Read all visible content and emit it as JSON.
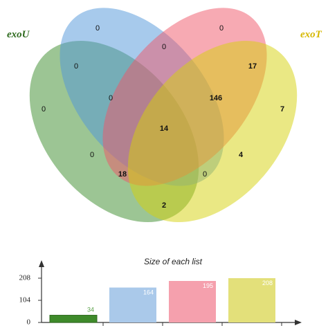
{
  "sets": [
    {
      "name": "exoU",
      "color": "#3a8c2a",
      "label_color": "#2f6b1f"
    },
    {
      "name": "",
      "color": "#4f95da"
    },
    {
      "name": "",
      "color": "#ef5568"
    },
    {
      "name": "exoT",
      "color": "#d6d20a",
      "label_color": "#d6b800"
    }
  ],
  "regions": [
    {
      "id": "green-only",
      "value": "0",
      "bold": false
    },
    {
      "id": "blue-only",
      "value": "0",
      "bold": false
    },
    {
      "id": "pink-only",
      "value": "0",
      "bold": false
    },
    {
      "id": "yellow-only",
      "value": "7",
      "bold": true
    },
    {
      "id": "green-blue",
      "value": "0",
      "bold": false
    },
    {
      "id": "blue-pink",
      "value": "0",
      "bold": false
    },
    {
      "id": "pink-yellow",
      "value": "17",
      "bold": true
    },
    {
      "id": "green-blue-pink",
      "value": "0",
      "bold": false
    },
    {
      "id": "blue-pink-yellow",
      "value": "146",
      "bold": true
    },
    {
      "id": "all-four",
      "value": "14",
      "bold": true
    },
    {
      "id": "green-pink",
      "value": "0",
      "bold": false
    },
    {
      "id": "blue-yellow",
      "value": "4",
      "bold": true
    },
    {
      "id": "green-pink-yellow",
      "value": "18",
      "bold": true
    },
    {
      "id": "green-blue-yellow",
      "value": "0",
      "bold": false
    },
    {
      "id": "green-yellow",
      "value": "2",
      "bold": true
    }
  ],
  "chart_data": {
    "type": "bar",
    "title": "Size of each list",
    "categories": [
      "",
      "",
      "",
      ""
    ],
    "values": [
      34,
      164,
      195,
      208
    ],
    "yticks": [
      "0",
      "104",
      "208"
    ],
    "ylim": [
      0,
      208
    ],
    "colors": [
      "#3e8a2a",
      "#aac9ea",
      "#f5a0ad",
      "#e3e07a"
    ],
    "label_colors": [
      "#5ca24a",
      "#ffffff",
      "#ffffff",
      "#ffffff"
    ]
  }
}
